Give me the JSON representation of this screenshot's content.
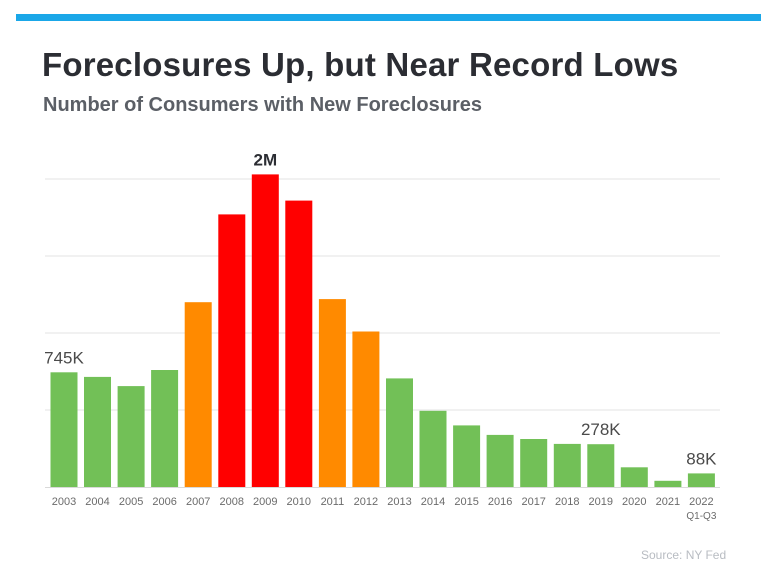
{
  "header": {
    "title": "Foreclosures Up, but Near Record Lows",
    "subtitle": "Number of Consumers with New Foreclosures"
  },
  "footer": {
    "source": "Source: NY Fed"
  },
  "colors": {
    "top_bar": "#1aa7e8",
    "gridline": "#e3e3e3",
    "axis": "#d9d9d9",
    "tick_text": "#6b6b6b",
    "label_text": "#4a4a4a"
  },
  "chart_data": {
    "type": "bar",
    "title": "Foreclosures Up, but Near Record Lows",
    "subtitle": "Number of Consumers with New Foreclosures",
    "xlabel": "",
    "ylabel": "",
    "ylim": [
      0,
      2000000
    ],
    "grid": true,
    "categories": [
      "2003",
      "2004",
      "2005",
      "2006",
      "2007",
      "2008",
      "2009",
      "2010",
      "2011",
      "2012",
      "2013",
      "2014",
      "2015",
      "2016",
      "2017",
      "2018",
      "2019",
      "2020",
      "2021",
      "2022"
    ],
    "category_sublabels": {
      "2022": "Q1-Q3"
    },
    "values": [
      745000,
      715000,
      655000,
      760000,
      1200000,
      1770000,
      2030000,
      1860000,
      1220000,
      1010000,
      705000,
      495000,
      400000,
      338000,
      312000,
      280000,
      278000,
      128000,
      40000,
      88000
    ],
    "bar_colors": [
      "#72c057",
      "#72c057",
      "#72c057",
      "#72c057",
      "#ff8a00",
      "#ff0000",
      "#ff0000",
      "#ff0000",
      "#ff8a00",
      "#ff8a00",
      "#72c057",
      "#72c057",
      "#72c057",
      "#72c057",
      "#72c057",
      "#72c057",
      "#72c057",
      "#72c057",
      "#72c057",
      "#72c057"
    ],
    "data_labels": [
      {
        "category": "2003",
        "text": "745K",
        "bold": false
      },
      {
        "category": "2009",
        "text": "2M",
        "bold": true
      },
      {
        "category": "2019",
        "text": "278K",
        "bold": false
      },
      {
        "category": "2022",
        "text": "88K",
        "bold": false
      }
    ]
  }
}
